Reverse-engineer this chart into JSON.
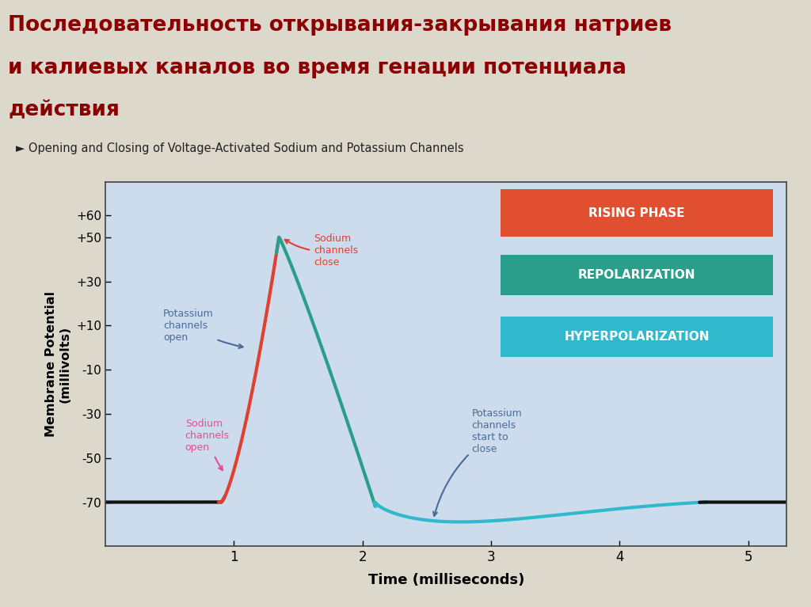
{
  "title_line1": "Последовательность открывания-закрывания натриев",
  "title_line2": "и калиевых каналов во время генации потенциала",
  "title_line3": "действия",
  "subtitle_english": "► Opening and Closing of Voltage-Activated Sodium and Potassium Channels",
  "xlabel": "Time (milliseconds)",
  "ylabel": "Membrane Potential\n(millivolts)",
  "ytick_vals": [
    -70,
    -50,
    -30,
    -10,
    10,
    30,
    50,
    60
  ],
  "ytick_labels": [
    "-70",
    "-50",
    "-30",
    "-10",
    "+10",
    "+30",
    "+50",
    "+60"
  ],
  "xticks": [
    1,
    2,
    3,
    4,
    5
  ],
  "xlim": [
    0.0,
    5.3
  ],
  "ylim": [
    -90,
    75
  ],
  "bg_outer": "#ddd8cc",
  "bg_chart": "#ccdcec",
  "legend_boxes": [
    {
      "label": "RISING PHASE",
      "color": "#e05030"
    },
    {
      "label": "REPOLARIZATION",
      "color": "#2a9e8a"
    },
    {
      "label": "HYPERPOLARIZATION",
      "color": "#30b8cc"
    }
  ],
  "color_black": "#111111",
  "color_red": "#e04030",
  "color_teal": "#2a9e8a",
  "color_cyan": "#30b8cc",
  "color_sodium_open": "#e05090",
  "color_potassium": "#4a6a9a",
  "color_sodium_close": "#e04030"
}
